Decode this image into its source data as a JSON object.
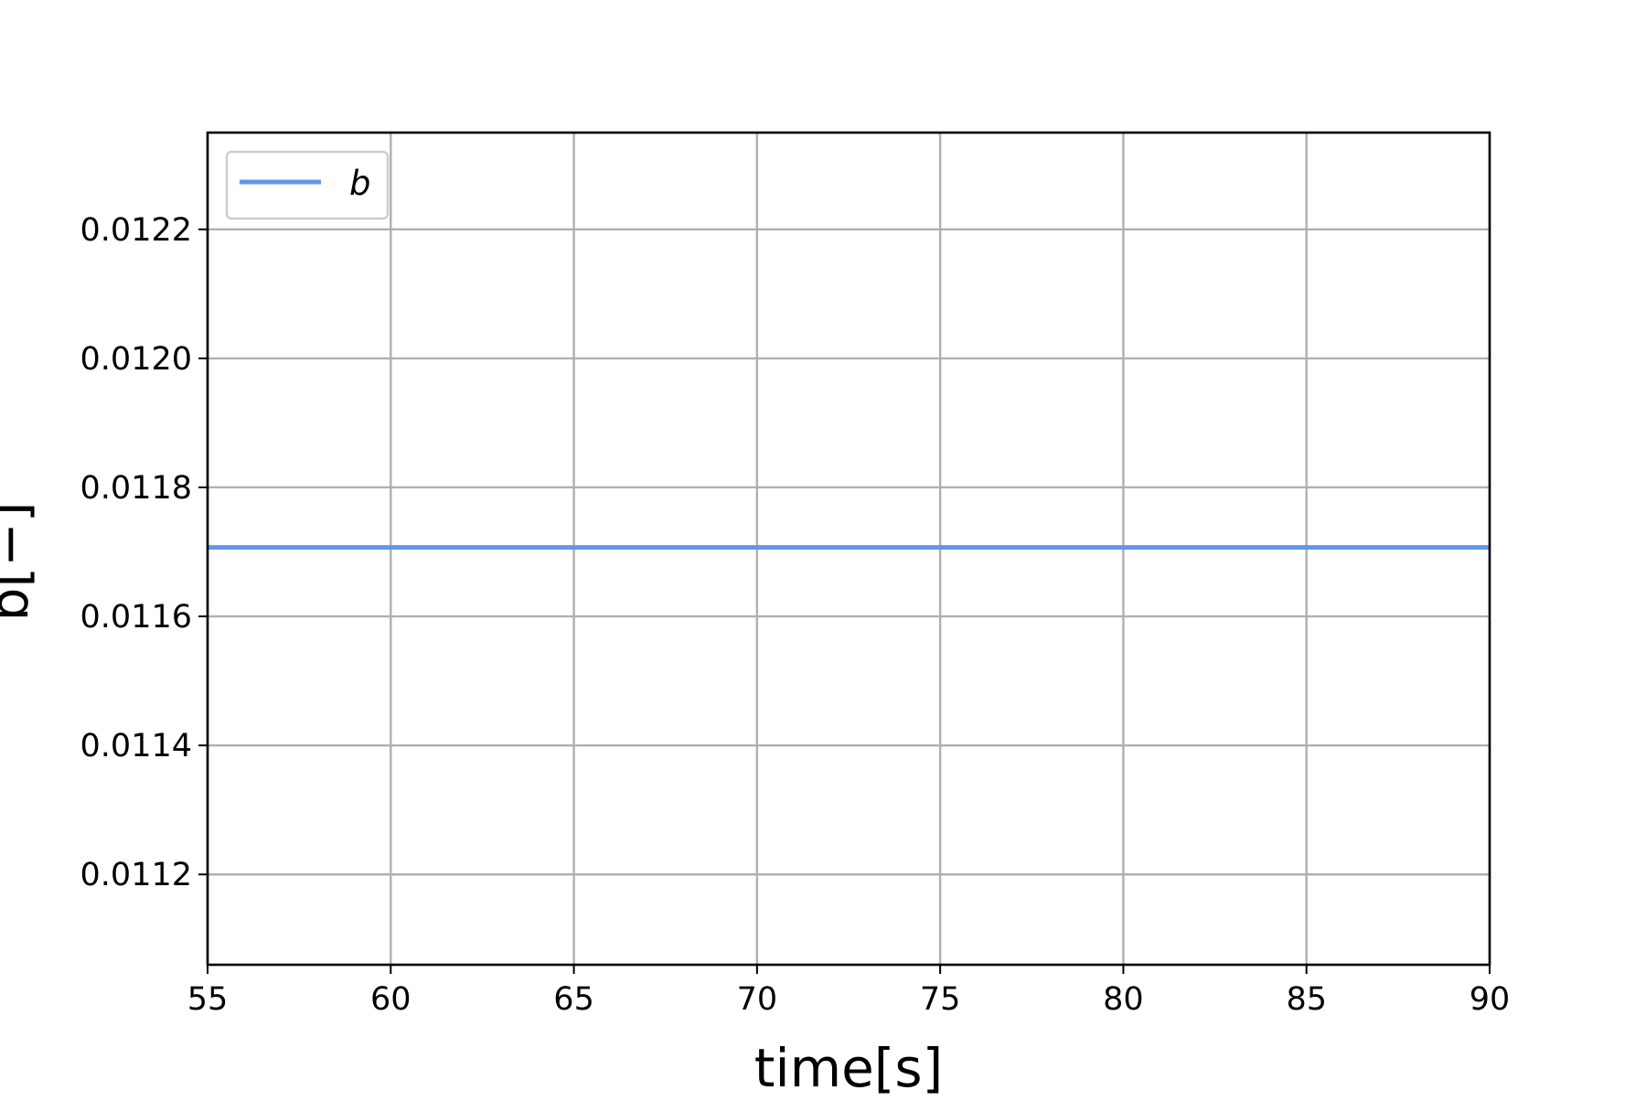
{
  "chart_data": {
    "type": "line",
    "title": "",
    "xlabel": "time[s]",
    "ylabel": "b[−]",
    "xlim": [
      55,
      90
    ],
    "ylim": [
      0.01106,
      0.01235
    ],
    "xticks": [
      55,
      60,
      65,
      70,
      75,
      80,
      85,
      90
    ],
    "xtick_labels": [
      "55",
      "60",
      "65",
      "70",
      "75",
      "80",
      "85",
      "90"
    ],
    "yticks": [
      0.0112,
      0.0114,
      0.0116,
      0.0118,
      0.012,
      0.0122
    ],
    "ytick_labels": [
      "0.0112",
      "0.0114",
      "0.0116",
      "0.0118",
      "0.0120",
      "0.0122"
    ],
    "grid": true,
    "legend_position": "top-left",
    "series": [
      {
        "name": "b",
        "color": "#6495ed",
        "x": [
          55,
          90
        ],
        "y": [
          0.011707,
          0.011707
        ]
      }
    ]
  }
}
